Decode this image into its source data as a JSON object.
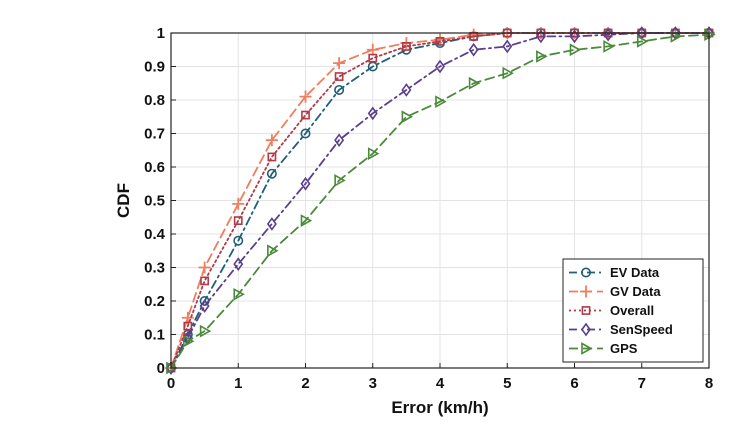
{
  "chart_data": {
    "type": "line",
    "title": "",
    "xlabel": "Error (km/h)",
    "ylabel": "CDF",
    "xlim": [
      0,
      8
    ],
    "ylim": [
      0,
      1
    ],
    "xticks": [
      "0",
      "1",
      "2",
      "3",
      "4",
      "5",
      "6",
      "7",
      "8"
    ],
    "yticks": [
      "0",
      "0.1",
      "0.2",
      "0.3",
      "0.4",
      "0.5",
      "0.6",
      "0.7",
      "0.8",
      "0.9",
      "1"
    ],
    "grid": true,
    "legend_position": "bottom-right",
    "series": [
      {
        "name": "EV Data",
        "color": "#1f5f7a",
        "marker": "circle",
        "dash": "dash-dot",
        "x": [
          0,
          0.25,
          0.5,
          1,
          1.5,
          2,
          2.5,
          3,
          3.5,
          4,
          4.5,
          5,
          5.5,
          6,
          6.5,
          7,
          7.5,
          8
        ],
        "y": [
          0,
          0.1,
          0.2,
          0.38,
          0.58,
          0.7,
          0.83,
          0.9,
          0.95,
          0.97,
          0.99,
          1.0,
          1.0,
          1.0,
          1.0,
          1.0,
          1.0,
          1.0
        ]
      },
      {
        "name": "GV Data",
        "color": "#f07d5e",
        "marker": "plus",
        "dash": "dash",
        "x": [
          0,
          0.25,
          0.5,
          1,
          1.5,
          2,
          2.5,
          3,
          3.5,
          4,
          4.5,
          5,
          5.5,
          6,
          6.5,
          7,
          7.5,
          8
        ],
        "y": [
          0,
          0.15,
          0.3,
          0.49,
          0.68,
          0.81,
          0.91,
          0.95,
          0.97,
          0.98,
          0.995,
          1.0,
          1.0,
          1.0,
          1.0,
          1.0,
          1.0,
          1.0
        ]
      },
      {
        "name": "Overall",
        "color": "#b03a48",
        "marker": "square",
        "dash": "dot",
        "x": [
          0,
          0.25,
          0.5,
          1,
          1.5,
          2,
          2.5,
          3,
          3.5,
          4,
          4.5,
          5,
          5.5,
          6,
          6.5,
          7,
          7.5,
          8
        ],
        "y": [
          0,
          0.125,
          0.26,
          0.44,
          0.63,
          0.755,
          0.87,
          0.925,
          0.96,
          0.975,
          0.99,
          1.0,
          1.0,
          1.0,
          1.0,
          1.0,
          1.0,
          1.0
        ]
      },
      {
        "name": "SenSpeed",
        "color": "#5a3f8c",
        "marker": "diamond",
        "dash": "dash-dot",
        "x": [
          0,
          0.25,
          0.5,
          1,
          1.5,
          2,
          2.5,
          3,
          3.5,
          4,
          4.5,
          5,
          5.5,
          6,
          6.5,
          7,
          7.5,
          8
        ],
        "y": [
          0,
          0.09,
          0.185,
          0.31,
          0.43,
          0.55,
          0.68,
          0.76,
          0.83,
          0.9,
          0.95,
          0.96,
          0.99,
          0.99,
          0.995,
          1.0,
          1.0,
          1.0
        ]
      },
      {
        "name": "GPS",
        "color": "#4a8a3a",
        "marker": "triangle-right",
        "dash": "dash",
        "x": [
          0,
          0.25,
          0.5,
          1,
          1.5,
          2,
          2.5,
          3,
          3.5,
          4,
          4.5,
          5,
          5.5,
          6,
          6.5,
          7,
          7.5,
          8
        ],
        "y": [
          0,
          0.08,
          0.11,
          0.22,
          0.35,
          0.44,
          0.56,
          0.64,
          0.75,
          0.795,
          0.85,
          0.88,
          0.93,
          0.95,
          0.96,
          0.975,
          0.99,
          0.995
        ]
      }
    ]
  }
}
